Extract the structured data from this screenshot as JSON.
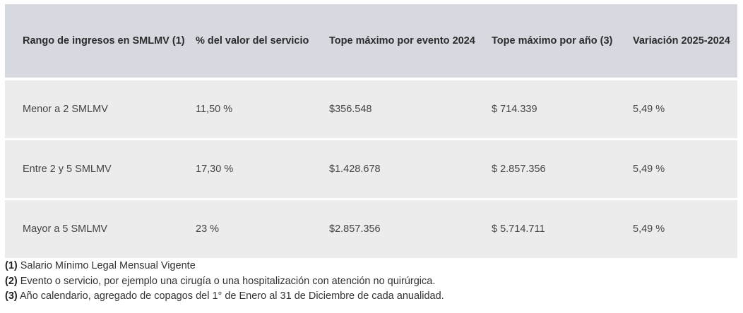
{
  "table": {
    "headers": [
      "Rango de ingresos en SMLMV (1)",
      "% del valor del servicio",
      "Tope máximo por evento 2024",
      "Tope máximo por año (3)",
      "Variación 2025-2024"
    ],
    "rows": [
      [
        "Menor a 2 SMLMV",
        "11,50 %",
        "$356.548",
        "$ 714.339",
        "5,49 %"
      ],
      [
        "Entre 2 y 5 SMLMV",
        "17,30 %",
        "$1.428.678",
        "$ 2.857.356",
        "5,49 %"
      ],
      [
        "Mayor a 5 SMLMV",
        "23 %",
        "$2.857.356",
        "$ 5.714.711",
        "5,49 %"
      ]
    ]
  },
  "notes": [
    {
      "marker": "(1)",
      "text": "Salario Mínimo Legal Mensual Vigente"
    },
    {
      "marker": "(2)",
      "text": "Evento o servicio, por ejemplo una cirugía o una hospitalización con atención no quirúrgica."
    },
    {
      "marker": "(3)",
      "text": "Año calendario, agregado de copagos del 1° de Enero al 31 de Diciembre de cada anualidad."
    }
  ]
}
